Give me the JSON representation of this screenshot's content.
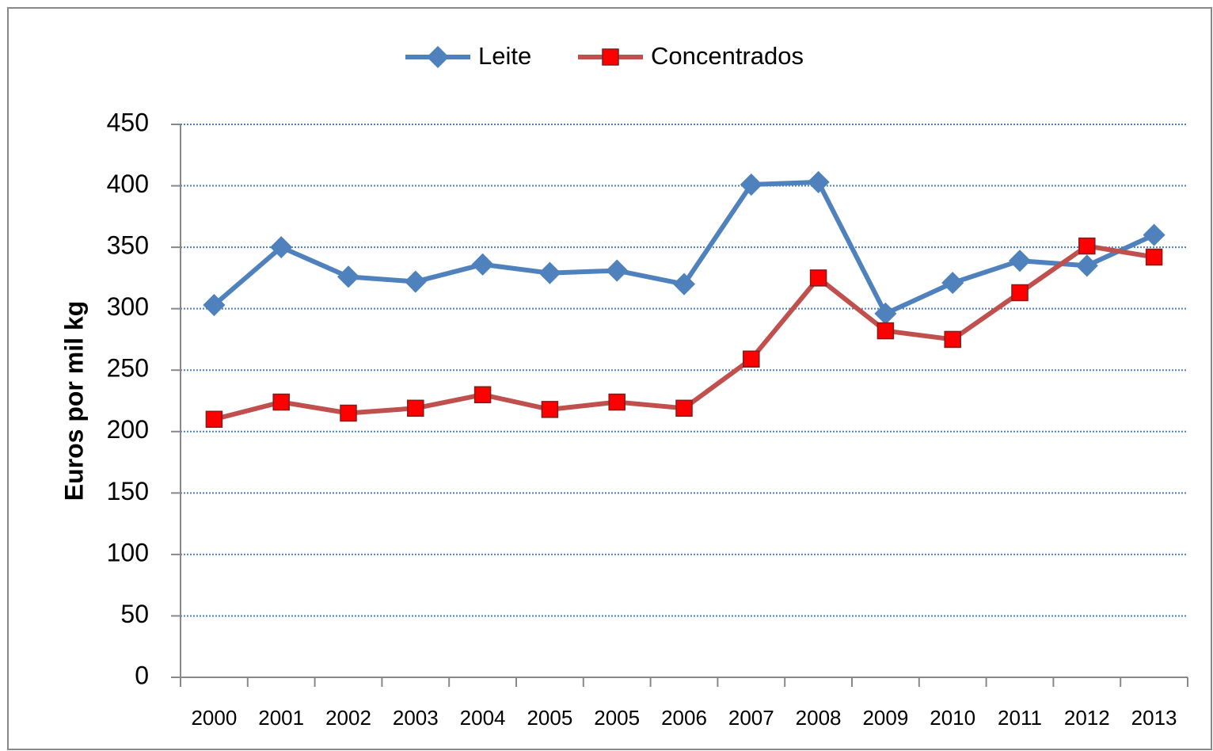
{
  "chart_data": {
    "type": "line",
    "y_label": "Euros por mil kg",
    "categories": [
      "2000",
      "2001",
      "2002",
      "2003",
      "2004",
      "2005",
      "2005",
      "2006",
      "2007",
      "2008",
      "2009",
      "2010",
      "2011",
      "2012",
      "2013"
    ],
    "series": [
      {
        "name": "Leite",
        "color": "#4f81bd",
        "marker": "diamond",
        "marker_color": "#4f81bd",
        "values": [
          303,
          350,
          326,
          322,
          336,
          329,
          331,
          320,
          401,
          403,
          296,
          321,
          339,
          335,
          360
        ]
      },
      {
        "name": "Concentrados",
        "color": "#c0504d",
        "marker": "square",
        "marker_color": "#ff0000",
        "values": [
          210,
          224,
          215,
          219,
          230,
          218,
          224,
          219,
          259,
          325,
          282,
          275,
          313,
          351,
          342
        ]
      }
    ],
    "ylim": [
      0,
      450
    ],
    "yticks": [
      0,
      50,
      100,
      150,
      200,
      250,
      300,
      350,
      400,
      450
    ],
    "grid": true,
    "legend": "top"
  }
}
